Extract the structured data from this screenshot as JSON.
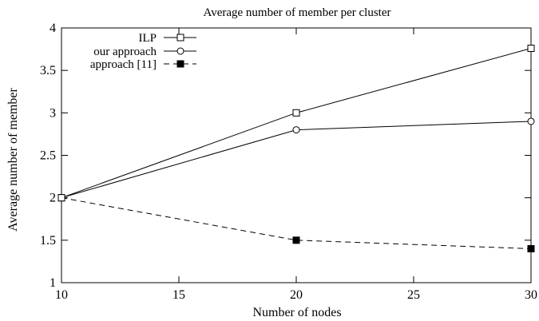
{
  "chart_data": {
    "type": "line",
    "title": "Average number of member per cluster",
    "xlabel": "Number of nodes",
    "ylabel": "Average number of member",
    "xlim": [
      10,
      30
    ],
    "ylim": [
      1,
      4
    ],
    "x_ticks": [
      10,
      15,
      20,
      25,
      30
    ],
    "y_ticks": [
      1,
      1.5,
      2,
      2.5,
      3,
      3.5,
      4
    ],
    "x_tick_labels": [
      "10",
      "15",
      "20",
      "25",
      "30"
    ],
    "y_tick_labels": [
      "1",
      "1.5",
      "2",
      "2.5",
      "3",
      "3.5",
      "4"
    ],
    "grid": false,
    "legend_position": "top-left",
    "x": [
      10,
      20,
      30
    ],
    "series": [
      {
        "name": "ILP",
        "values": [
          2.0,
          3.0,
          3.76
        ],
        "marker": "open-square",
        "dash": "solid",
        "color": "#000000"
      },
      {
        "name": "our approach",
        "values": [
          2.0,
          2.8,
          2.9
        ],
        "marker": "open-circle",
        "dash": "solid",
        "color": "#000000"
      },
      {
        "name": "approach [11]",
        "values": [
          2.0,
          1.5,
          1.4
        ],
        "marker": "filled-square",
        "dash": "dashed",
        "color": "#000000"
      }
    ]
  }
}
